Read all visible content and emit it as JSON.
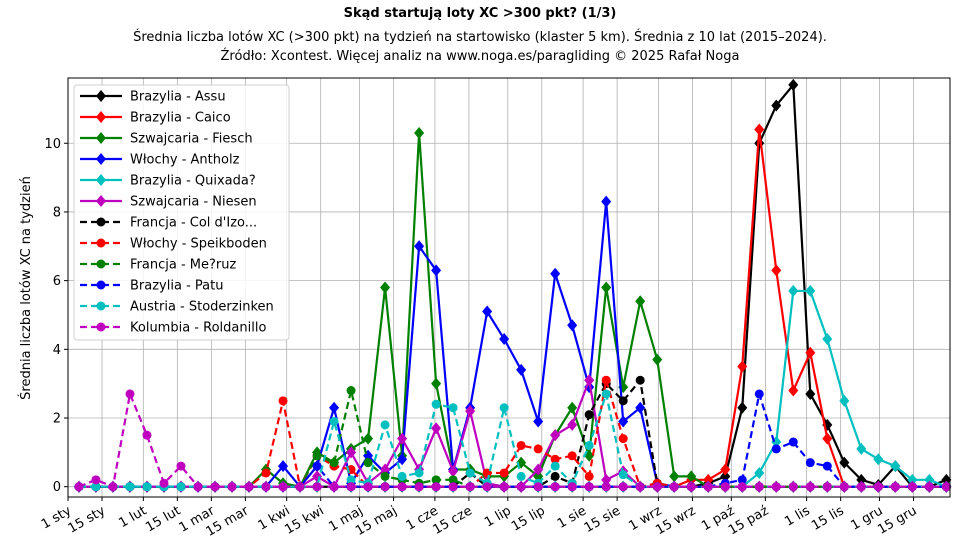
{
  "chart_data": {
    "type": "line",
    "title": "Skąd startują loty XC >300 pkt? (1/3)",
    "subtitle_lines": [
      "Średnia liczba lotów XC (>300 pkt) na tydzień na startowisko (klaster 5 km). Średnia z 10 lat (2015–2024).",
      "Źródło: Xcontest. Więcej analiz na www.noga.es/paragliding © 2025 Rafał Noga"
    ],
    "xlabel": "",
    "ylabel": "Średnia liczba lotów XC na tydzień",
    "ylim": [
      -0.3,
      11.9
    ],
    "xlim_day_of_year": [
      0,
      363
    ],
    "yticks": [
      0,
      2,
      4,
      6,
      8,
      10
    ],
    "xticks": [
      {
        "label": "1 sty",
        "day": 0
      },
      {
        "label": "15 sty",
        "day": 14
      },
      {
        "label": "1 lut",
        "day": 31
      },
      {
        "label": "15 lut",
        "day": 45
      },
      {
        "label": "1 mar",
        "day": 59
      },
      {
        "label": "15 mar",
        "day": 73
      },
      {
        "label": "1 kwi",
        "day": 90
      },
      {
        "label": "15 kwi",
        "day": 104
      },
      {
        "label": "1 maj",
        "day": 120
      },
      {
        "label": "15 maj",
        "day": 134
      },
      {
        "label": "1 cze",
        "day": 151
      },
      {
        "label": "15 cze",
        "day": 165
      },
      {
        "label": "1 lip",
        "day": 181
      },
      {
        "label": "15 lip",
        "day": 195
      },
      {
        "label": "1 sie",
        "day": 212
      },
      {
        "label": "15 sie",
        "day": 226
      },
      {
        "label": "1 wrz",
        "day": 243
      },
      {
        "label": "15 wrz",
        "day": 257
      },
      {
        "label": "1 paź",
        "day": 273
      },
      {
        "label": "15 paź",
        "day": 287
      },
      {
        "label": "1 lis",
        "day": 304
      },
      {
        "label": "15 lis",
        "day": 318
      },
      {
        "label": "1 gru",
        "day": 334
      },
      {
        "label": "15 gru",
        "day": 348
      }
    ],
    "grid": true,
    "legend_position": "top-left",
    "x_weeks": "52 weekly points, week i centred at day 4.5 + 7*i",
    "series": [
      {
        "name": "Brazylia - Assu",
        "color": "#000000",
        "style": "solid",
        "marker": "diamond",
        "values": [
          0,
          0,
          0,
          0,
          0,
          0,
          0,
          0,
          0,
          0,
          0,
          0,
          0,
          0,
          0,
          0,
          0,
          0,
          0,
          0,
          0,
          0,
          0,
          0,
          0,
          0,
          0,
          0,
          0,
          0,
          0,
          0,
          0,
          0,
          0,
          0,
          0,
          0.1,
          0.3,
          2.3,
          10.0,
          11.1,
          11.7,
          2.7,
          1.8,
          0.7,
          0.2,
          0.05,
          0.6,
          0,
          0,
          0.2
        ]
      },
      {
        "name": "Brazylia - Caico",
        "color": "#ff0000",
        "style": "solid",
        "marker": "diamond",
        "values": [
          0,
          0,
          0,
          0,
          0,
          0,
          0,
          0,
          0,
          0,
          0,
          0,
          0,
          0,
          0,
          0,
          0,
          0,
          0,
          0,
          0,
          0,
          0,
          0,
          0,
          0,
          0,
          0,
          0,
          0,
          0,
          0,
          0,
          0,
          0,
          0,
          0.2,
          0.2,
          0.5,
          3.5,
          10.4,
          6.3,
          2.8,
          3.9,
          1.4,
          0,
          0,
          0,
          0,
          0,
          0,
          0
        ]
      },
      {
        "name": "Szwajcaria - Fiesch",
        "color": "#008000",
        "style": "solid",
        "marker": "diamond",
        "values": [
          0,
          0,
          0,
          0,
          0,
          0,
          0,
          0,
          0,
          0,
          0,
          0.5,
          0.1,
          0,
          1.0,
          0.7,
          1.1,
          1.4,
          5.8,
          0.9,
          10.3,
          3.0,
          0.5,
          0.5,
          0.3,
          0.3,
          0.7,
          0.3,
          1.5,
          2.3,
          0.9,
          5.8,
          2.9,
          5.4,
          3.7,
          0.3,
          0.3,
          0,
          0,
          0,
          0,
          0,
          0,
          0,
          0,
          0,
          0,
          0,
          0,
          0,
          0,
          0
        ]
      },
      {
        "name": "Włochy - Antholz",
        "color": "#0000ff",
        "style": "solid",
        "marker": "diamond",
        "values": [
          0,
          0,
          0,
          0,
          0,
          0,
          0,
          0,
          0,
          0,
          0,
          0,
          0.6,
          0,
          0.6,
          2.3,
          0.1,
          0.9,
          0.4,
          0.8,
          7.0,
          6.3,
          0.5,
          2.3,
          5.1,
          4.3,
          3.4,
          1.9,
          6.2,
          4.7,
          2.9,
          8.3,
          1.9,
          2.3,
          0.1,
          0,
          0,
          0,
          0,
          0,
          0,
          0,
          0,
          0,
          0,
          0,
          0,
          0,
          0,
          0,
          0,
          0
        ]
      },
      {
        "name": "Brazylia - Quixada?",
        "color": "#00bfbf",
        "style": "solid",
        "marker": "diamond",
        "values": [
          0,
          0,
          0,
          0,
          0,
          0,
          0,
          0,
          0,
          0,
          0,
          0,
          0,
          0,
          0,
          0,
          0,
          0,
          0,
          0,
          0,
          0,
          0,
          0,
          0,
          0,
          0,
          0,
          0,
          0,
          0,
          0,
          0,
          0,
          0,
          0,
          0,
          0,
          0,
          0,
          0.4,
          1.3,
          5.7,
          5.7,
          4.3,
          2.5,
          1.1,
          0.8,
          0.6,
          0.2,
          0.2,
          0
        ]
      },
      {
        "name": "Szwajcaria - Niesen",
        "color": "#bf00bf",
        "style": "solid",
        "marker": "diamond",
        "values": [
          0,
          0,
          0,
          0,
          0,
          0,
          0,
          0,
          0,
          0,
          0,
          0,
          0,
          0,
          0.3,
          0,
          1.0,
          0.1,
          0.5,
          1.4,
          0.5,
          1.7,
          0.45,
          2.2,
          0.1,
          0,
          0,
          0.5,
          1.5,
          1.8,
          3.1,
          0.2,
          0.45,
          0,
          0,
          0,
          0,
          0,
          0,
          0,
          0,
          0,
          0,
          0,
          0,
          0,
          0,
          0,
          0,
          0,
          0,
          0
        ]
      },
      {
        "name": "Francja - Col d'Izo...",
        "color": "#000000",
        "style": "dashed",
        "marker": "circle",
        "values": [
          0,
          0,
          0,
          0,
          0,
          0,
          0,
          0,
          0,
          0,
          0,
          0,
          0,
          0,
          0,
          0,
          0,
          0,
          0,
          0,
          0,
          0,
          0,
          0.4,
          0,
          0,
          0,
          0,
          0.3,
          0.1,
          2.1,
          3.0,
          2.5,
          3.1,
          0.1,
          0,
          0,
          0,
          0,
          0,
          0,
          0,
          0,
          0,
          0,
          0,
          0,
          0,
          0,
          0,
          0,
          0
        ]
      },
      {
        "name": "Włochy - Speikboden",
        "color": "#ff0000",
        "style": "dashed",
        "marker": "circle",
        "values": [
          0,
          0,
          0,
          0,
          0,
          0,
          0,
          0,
          0,
          0,
          0,
          0.4,
          2.5,
          0,
          0.9,
          0.6,
          0.5,
          0,
          0,
          0,
          0,
          0,
          0,
          0,
          0.4,
          0.4,
          1.2,
          1.1,
          0.8,
          0.9,
          0.3,
          3.1,
          1.4,
          0,
          0.1,
          0,
          0,
          0,
          0,
          0,
          0,
          0,
          0,
          0,
          0,
          0,
          0,
          0,
          0,
          0,
          0,
          0
        ]
      },
      {
        "name": "Francja - Me?ruz",
        "color": "#008000",
        "style": "dashed",
        "marker": "circle",
        "values": [
          0,
          0,
          0,
          0,
          0,
          0,
          0,
          0,
          0,
          0,
          0,
          0,
          0,
          0,
          0.9,
          0.7,
          2.8,
          0.7,
          0.3,
          0.2,
          0.1,
          0.2,
          0.2,
          0,
          0,
          0,
          0,
          0,
          0,
          0,
          0,
          0,
          0,
          0,
          0,
          0,
          0,
          0,
          0,
          0,
          0,
          0,
          0,
          0,
          0,
          0,
          0,
          0,
          0,
          0,
          0,
          0
        ]
      },
      {
        "name": "Brazylia - Patu",
        "color": "#0000ff",
        "style": "dashed",
        "marker": "circle",
        "values": [
          0,
          0,
          0,
          0,
          0,
          0,
          0,
          0,
          0,
          0,
          0,
          0,
          0,
          0,
          0.6,
          0,
          0,
          0,
          0,
          0,
          0,
          0,
          0,
          0,
          0,
          0,
          0,
          0,
          0,
          0,
          0,
          0,
          0,
          0,
          0,
          0,
          0,
          0,
          0.1,
          0.2,
          2.7,
          1.1,
          1.3,
          0.7,
          0.6,
          0,
          0,
          0,
          0,
          0,
          0,
          0
        ]
      },
      {
        "name": "Austria - Stoderzinken",
        "color": "#00bfbf",
        "style": "dashed",
        "marker": "circle",
        "values": [
          0,
          0,
          0,
          0,
          0,
          0,
          0,
          0,
          0,
          0,
          0,
          0,
          0,
          0,
          0,
          1.9,
          0.2,
          0.1,
          1.8,
          0.3,
          0.4,
          2.4,
          2.3,
          0.4,
          0.1,
          2.3,
          0.3,
          0.1,
          0.6,
          0.1,
          1.2,
          2.7,
          0.35,
          0,
          0,
          0,
          0,
          0,
          0,
          0,
          0,
          0,
          0,
          0,
          0,
          0,
          0,
          0,
          0,
          0,
          0,
          0
        ]
      },
      {
        "name": "Kolumbia - Roldanillo",
        "color": "#bf00bf",
        "style": "dashed",
        "marker": "circle",
        "values": [
          0,
          0.2,
          0,
          2.7,
          1.5,
          0.1,
          0.6,
          0,
          0,
          0,
          0,
          0,
          0,
          0,
          0,
          0,
          0,
          0,
          0,
          0,
          0,
          0,
          0,
          0,
          0,
          0,
          0,
          0,
          0,
          0,
          0,
          0,
          0,
          0,
          0,
          0,
          0,
          0,
          0,
          0,
          0,
          0,
          0,
          0,
          0,
          0,
          0,
          0,
          0,
          0,
          0,
          0
        ]
      }
    ]
  }
}
